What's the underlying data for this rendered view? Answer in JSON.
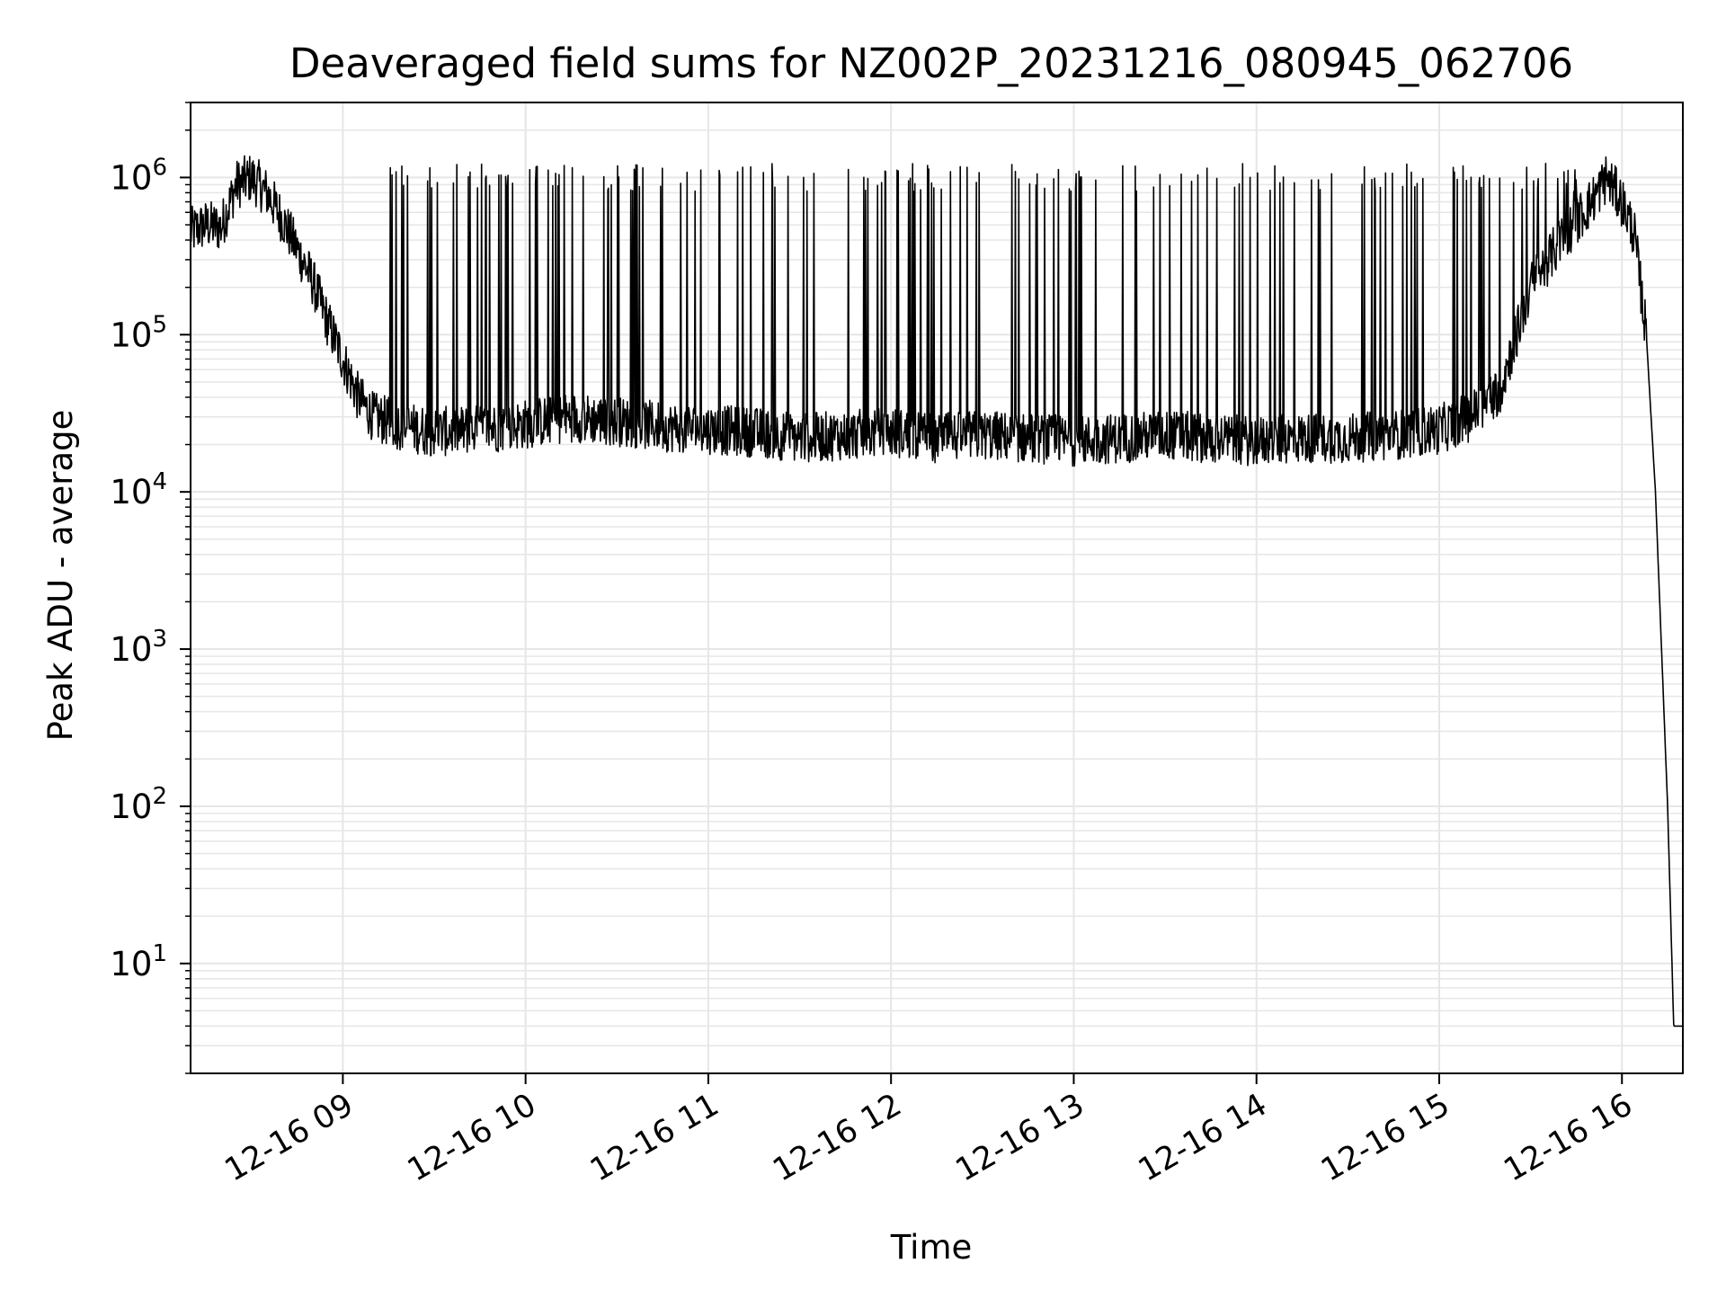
{
  "chart_data": {
    "type": "line",
    "title": "Deaveraged field sums for NZ002P_20231216_080945_062706",
    "xlabel": "Time",
    "ylabel": "Peak ADU - average",
    "yscale": "log",
    "ylim": [
      2,
      3000000
    ],
    "xlim": [
      "2023-12-16 08:10",
      "2023-12-16 16:20"
    ],
    "x_ticks": [
      "12-16 09",
      "12-16 10",
      "12-16 11",
      "12-16 12",
      "12-16 13",
      "12-16 14",
      "12-16 15",
      "12-16 16"
    ],
    "y_tick_exponents": [
      "1",
      "2",
      "3",
      "4",
      "5",
      "6"
    ],
    "y_tick_base": "10",
    "grid": true,
    "line_color": "#000000",
    "grid_color": "#e6e6e6",
    "series": [
      {
        "x": [
          "2023-12-16 08:10",
          "2023-12-16 08:15",
          "2023-12-16 08:20",
          "2023-12-16 08:25",
          "2023-12-16 08:30",
          "2023-12-16 08:35",
          "2023-12-16 08:40",
          "2023-12-16 08:45",
          "2023-12-16 08:50",
          "2023-12-16 08:55",
          "2023-12-16 09:00",
          "2023-12-16 09:05",
          "2023-12-16 09:10",
          "2023-12-16 09:20",
          "2023-12-16 09:30",
          "2023-12-16 09:45",
          "2023-12-16 10:00",
          "2023-12-16 10:15",
          "2023-12-16 10:30",
          "2023-12-16 10:45",
          "2023-12-16 11:00",
          "2023-12-16 11:15",
          "2023-12-16 11:30",
          "2023-12-16 11:45",
          "2023-12-16 12:00",
          "2023-12-16 12:15",
          "2023-12-16 12:30",
          "2023-12-16 12:45",
          "2023-12-16 13:00",
          "2023-12-16 13:15",
          "2023-12-16 13:30",
          "2023-12-16 13:45",
          "2023-12-16 14:00",
          "2023-12-16 14:15",
          "2023-12-16 14:30",
          "2023-12-16 14:45",
          "2023-12-16 15:00",
          "2023-12-16 15:10",
          "2023-12-16 15:20",
          "2023-12-16 15:30",
          "2023-12-16 15:40",
          "2023-12-16 15:50",
          "2023-12-16 15:55",
          "2023-12-16 16:00",
          "2023-12-16 16:04",
          "2023-12-16 16:08",
          "2023-12-16 16:11",
          "2023-12-16 16:13",
          "2023-12-16 16:15",
          "2023-12-16 16:16",
          "2023-12-16 16:17",
          "2023-12-16 16:18",
          "2023-12-16 16:20"
        ],
        "y": [
          450000,
          500000,
          480000,
          900000,
          1000000,
          800000,
          550000,
          350000,
          220000,
          120000,
          70000,
          40000,
          30000,
          26000,
          24000,
          25000,
          27000,
          30000,
          28000,
          26000,
          25000,
          24000,
          22000,
          23000,
          24000,
          22000,
          23000,
          22000,
          21000,
          22000,
          23000,
          22000,
          21000,
          22000,
          22000,
          23000,
          25000,
          30000,
          45000,
          200000,
          400000,
          700000,
          1000000,
          700000,
          450000,
          100000,
          10000,
          1000,
          100,
          20,
          4,
          4,
          4
        ]
      }
    ],
    "spikes_note": "",
    "spike_level": 1000000
  }
}
